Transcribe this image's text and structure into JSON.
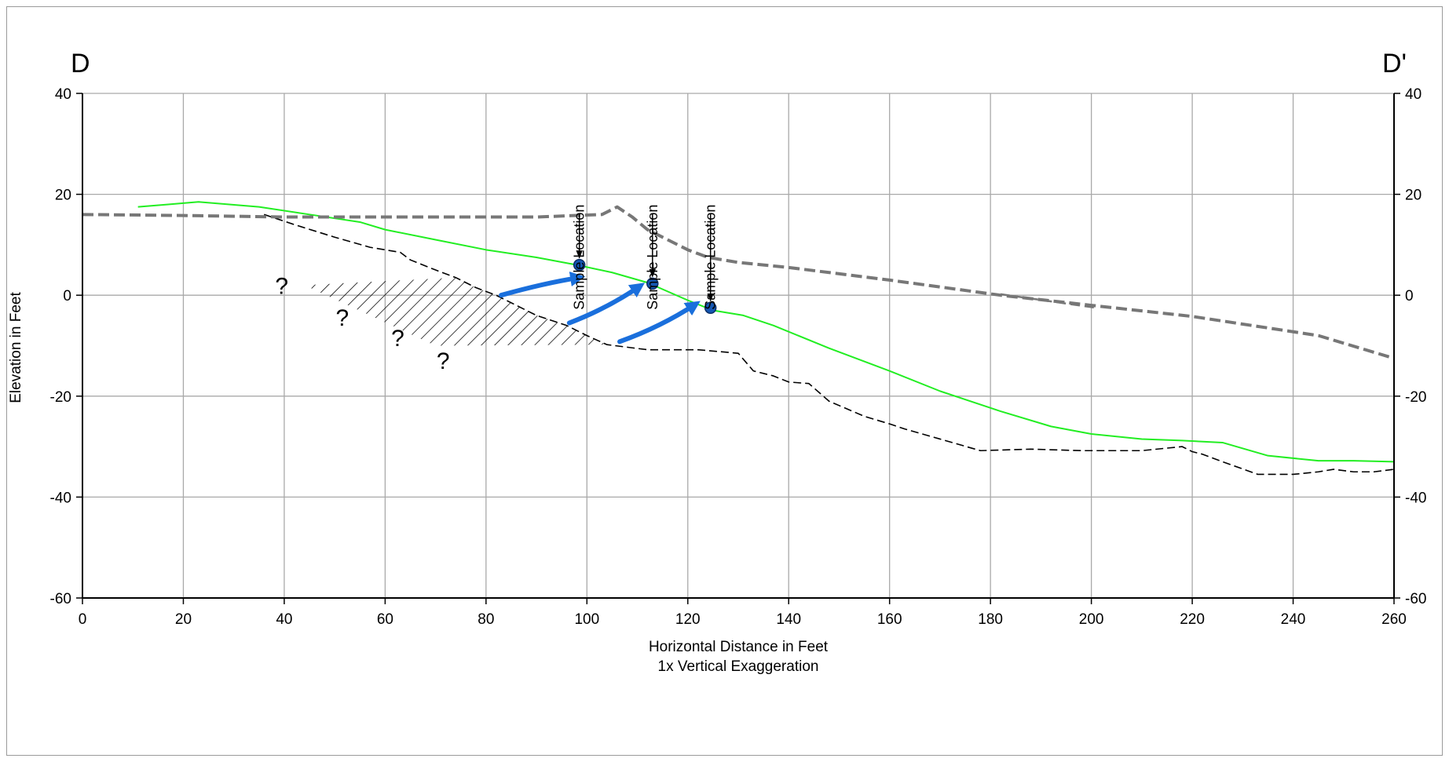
{
  "chart_data": {
    "type": "line",
    "title": "",
    "section_start_label": "D",
    "section_end_label": "D'",
    "xlabel": "Horizontal Distance in Feet",
    "xlabel_sub": "1x Vertical Exaggeration",
    "ylabel": "Elevation in Feet",
    "xlim": [
      0,
      260
    ],
    "ylim": [
      -60,
      40
    ],
    "x_ticks": [
      0,
      20,
      40,
      60,
      80,
      100,
      120,
      140,
      160,
      180,
      200,
      220,
      240,
      260
    ],
    "y_ticks": [
      40,
      20,
      0,
      -20,
      -40,
      -60
    ],
    "grid": true,
    "series": [
      {
        "color": "#22ee22",
        "style": "solid",
        "points": [
          [
            11,
            17.5
          ],
          [
            17,
            18
          ],
          [
            23,
            18.5
          ],
          [
            35,
            17.5
          ],
          [
            45,
            16
          ],
          [
            55,
            14.5
          ],
          [
            60,
            13
          ],
          [
            70,
            11
          ],
          [
            80,
            9
          ],
          [
            90,
            7.5
          ],
          [
            98,
            6
          ],
          [
            105,
            4.5
          ],
          [
            112,
            2.5
          ],
          [
            120,
            -1
          ],
          [
            125,
            -3
          ],
          [
            131,
            -4
          ],
          [
            137,
            -6
          ],
          [
            148,
            -10.5
          ],
          [
            160,
            -15
          ],
          [
            170,
            -19
          ],
          [
            182,
            -23
          ],
          [
            192,
            -26
          ],
          [
            200,
            -27.5
          ],
          [
            210,
            -28.5
          ],
          [
            218,
            -28.8
          ],
          [
            226,
            -29.2
          ],
          [
            235,
            -31.8
          ],
          [
            245,
            -32.8
          ],
          [
            252,
            -32.8
          ],
          [
            260,
            -33
          ]
        ]
      },
      {
        "color": "#000000",
        "style": "dashed",
        "points": [
          [
            36,
            16
          ],
          [
            42,
            14
          ],
          [
            50,
            11.5
          ],
          [
            57,
            9.5
          ],
          [
            63,
            8.5
          ],
          [
            65,
            7
          ],
          [
            70,
            5
          ],
          [
            74,
            3.5
          ],
          [
            78,
            1.5
          ],
          [
            82,
            0
          ],
          [
            86,
            -2
          ],
          [
            90,
            -4
          ],
          [
            96,
            -6
          ],
          [
            100,
            -8
          ],
          [
            104,
            -9.8
          ],
          [
            112,
            -10.8
          ],
          [
            122,
            -10.8
          ],
          [
            130,
            -11.5
          ],
          [
            133,
            -15
          ],
          [
            137,
            -16
          ],
          [
            140,
            -17.2
          ],
          [
            144,
            -17.5
          ],
          [
            148,
            -21
          ],
          [
            155,
            -24
          ],
          [
            160,
            -25.5
          ],
          [
            163,
            -26.5
          ],
          [
            170,
            -28.5
          ],
          [
            178,
            -30.8
          ],
          [
            188,
            -30.5
          ],
          [
            198,
            -30.8
          ],
          [
            210,
            -30.8
          ],
          [
            218,
            -30
          ],
          [
            220,
            -31
          ],
          [
            222,
            -31.5
          ],
          [
            226,
            -33
          ],
          [
            233,
            -35.5
          ],
          [
            240,
            -35.5
          ],
          [
            245,
            -35
          ],
          [
            248,
            -34.5
          ],
          [
            252,
            -35
          ],
          [
            256,
            -35
          ],
          [
            260,
            -34.5
          ]
        ]
      },
      {
        "color": "#777777",
        "style": "dashed-thick",
        "points": [
          [
            0,
            16
          ],
          [
            20,
            15.8
          ],
          [
            40,
            15.5
          ],
          [
            60,
            15.5
          ],
          [
            90,
            15.5
          ],
          [
            103,
            16
          ],
          [
            106,
            17.5
          ],
          [
            109,
            15.5
          ],
          [
            112,
            13
          ],
          [
            120,
            9
          ],
          [
            124,
            7.5
          ],
          [
            130,
            6.5
          ],
          [
            140,
            5.5
          ],
          [
            160,
            3
          ],
          [
            182,
            0
          ],
          [
            200,
            -2
          ],
          [
            220,
            -4.2
          ],
          [
            245,
            -8
          ],
          [
            260,
            -12.5
          ]
        ]
      },
      {
        "color": "#777777",
        "style": "dashed-thin",
        "points": [
          [
            182,
            0.2
          ],
          [
            201,
            -2.5
          ]
        ]
      }
    ],
    "sample_points": [
      {
        "label": "Sample Location",
        "x": 98.5,
        "y": 6
      },
      {
        "label": "Sample Location",
        "x": 113,
        "y": 2.3
      },
      {
        "label": "Sample Location",
        "x": 124.5,
        "y": -2.5
      }
    ],
    "uncertain_marks": [
      "?",
      "?",
      "?",
      "?"
    ],
    "hatched_zone": {
      "upper": [
        [
          44,
          2
        ],
        [
          74,
          3.5
        ],
        [
          78,
          1.5
        ],
        [
          82,
          0
        ],
        [
          86,
          -2
        ],
        [
          90,
          -4
        ],
        [
          96,
          -6
        ],
        [
          100,
          -8
        ],
        [
          104,
          -9.8
        ]
      ],
      "lower": [
        [
          44,
          2
        ],
        [
          70,
          -10
        ],
        [
          104,
          -9.8
        ]
      ]
    },
    "flow_arrows": [
      {
        "from": [
          83,
          0
        ],
        "to": [
          98.5,
          3.5
        ]
      },
      {
        "from": [
          96.5,
          -5.5
        ],
        "to": [
          110.5,
          1.8
        ]
      },
      {
        "from": [
          106.5,
          -9.2
        ],
        "to": [
          121.5,
          -1.8
        ]
      }
    ]
  }
}
